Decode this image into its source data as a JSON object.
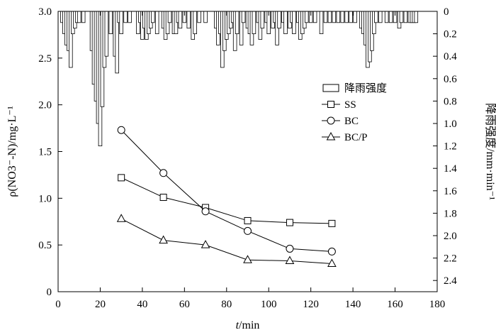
{
  "chart_data": {
    "type": "line",
    "title": "",
    "xlabel_var": "t",
    "xlabel_unit": "/min",
    "ylabel_left": "ρ(NO3⁻-N)/mg·L⁻¹",
    "ylabel_right": "降雨强度/mm·min⁻¹",
    "xlim": [
      0,
      180
    ],
    "ylim_left": [
      0,
      3.0
    ],
    "ylim_right": [
      0,
      2.5
    ],
    "right_axis_inverted": true,
    "grid": false,
    "legend_position": "top-right",
    "x_ticks": [
      0,
      20,
      40,
      60,
      80,
      100,
      120,
      140,
      160,
      180
    ],
    "x_tick_labels": [
      "0",
      "20",
      "40",
      "60",
      "80",
      "100",
      "120",
      "140",
      "160",
      "180"
    ],
    "y_left_ticks": [
      0,
      0.5,
      1.0,
      1.5,
      2.0,
      2.5,
      3.0
    ],
    "y_left_tick_labels": [
      "0",
      "0.5",
      "1.0",
      "1.5",
      "2.0",
      "2.5",
      "3.0"
    ],
    "y_right_ticks": [
      0,
      0.2,
      0.4,
      0.6,
      0.8,
      1.0,
      1.2,
      1.4,
      1.6,
      1.8,
      2.0,
      2.2,
      2.4
    ],
    "y_right_tick_labels": [
      "0",
      "0.2",
      "0.4",
      "0.6",
      "0.8",
      "1.0",
      "1.2",
      "1.4",
      "1.6",
      "1.8",
      "2.0",
      "2.2",
      "2.4"
    ],
    "legend": [
      {
        "label": "降雨强度",
        "marker": "bar"
      },
      {
        "label": "SS",
        "marker": "square"
      },
      {
        "label": "BC",
        "marker": "circle"
      },
      {
        "label": "BC/P",
        "marker": "triangle"
      }
    ],
    "series": [
      {
        "name": "SS",
        "marker": "square",
        "x": [
          30,
          50,
          70,
          90,
          110,
          130
        ],
        "y": [
          1.22,
          1.01,
          0.9,
          0.76,
          0.74,
          0.73
        ]
      },
      {
        "name": "BC",
        "marker": "circle",
        "x": [
          30,
          50,
          70,
          90,
          110,
          130
        ],
        "y": [
          1.73,
          1.27,
          0.86,
          0.65,
          0.46,
          0.43
        ]
      },
      {
        "name": "BC/P",
        "marker": "triangle",
        "x": [
          30,
          50,
          70,
          90,
          110,
          130
        ],
        "y": [
          0.78,
          0.55,
          0.5,
          0.34,
          0.33,
          0.3
        ]
      }
    ],
    "rainfall": {
      "name": "降雨强度",
      "x": [
        2,
        3,
        4,
        5,
        6,
        7,
        8,
        9,
        10,
        12,
        16,
        17,
        18,
        19,
        20,
        21,
        22,
        23,
        25,
        27,
        28,
        29,
        30,
        32,
        34,
        38,
        39,
        40,
        41,
        42,
        43,
        44,
        45,
        47,
        50,
        51,
        52,
        53,
        55,
        56,
        57,
        58,
        60,
        62,
        64,
        65,
        67,
        70,
        75,
        76,
        77,
        78,
        79,
        80,
        81,
        82,
        83,
        84,
        85,
        87,
        88,
        90,
        91,
        92,
        93,
        95,
        96,
        97,
        99,
        100,
        102,
        103,
        104,
        105,
        107,
        108,
        110,
        111,
        112,
        114,
        115,
        116,
        117,
        118,
        120,
        122,
        125,
        127,
        129,
        131,
        133,
        135,
        137,
        139,
        141,
        144,
        145,
        146,
        147,
        148,
        149,
        150,
        151,
        153,
        156,
        158,
        160,
        162,
        163,
        165,
        167,
        168,
        169,
        170
      ],
      "y": [
        0.1,
        0.2,
        0.3,
        0.35,
        0.5,
        0.2,
        0.15,
        0.1,
        0.1,
        0.1,
        0.35,
        0.65,
        0.8,
        1.0,
        1.2,
        0.85,
        0.5,
        0.4,
        0.2,
        0.4,
        0.55,
        0.1,
        0.2,
        0.1,
        0.1,
        0.2,
        0.1,
        0.25,
        0.15,
        0.25,
        0.2,
        0.15,
        0.1,
        0.2,
        0.15,
        0.25,
        0.2,
        0.1,
        0.2,
        0.2,
        0.1,
        0.15,
        0.1,
        0.15,
        0.25,
        0.2,
        0.1,
        0.1,
        0.15,
        0.3,
        0.2,
        0.5,
        0.35,
        0.25,
        0.2,
        0.15,
        0.1,
        0.35,
        0.2,
        0.3,
        0.1,
        0.15,
        0.2,
        0.3,
        0.2,
        0.1,
        0.25,
        0.15,
        0.1,
        0.2,
        0.15,
        0.1,
        0.3,
        0.15,
        0.1,
        0.2,
        0.15,
        0.1,
        0.2,
        0.1,
        0.25,
        0.2,
        0.15,
        0.1,
        0.1,
        0.1,
        0.2,
        0.1,
        0.1,
        0.1,
        0.1,
        0.1,
        0.1,
        0.1,
        0.1,
        0.15,
        0.2,
        0.3,
        0.5,
        0.45,
        0.35,
        0.2,
        0.1,
        0.1,
        0.1,
        0.1,
        0.1,
        0.15,
        0.1,
        0.1,
        0.1,
        0.1,
        0.1,
        0.1
      ]
    }
  }
}
